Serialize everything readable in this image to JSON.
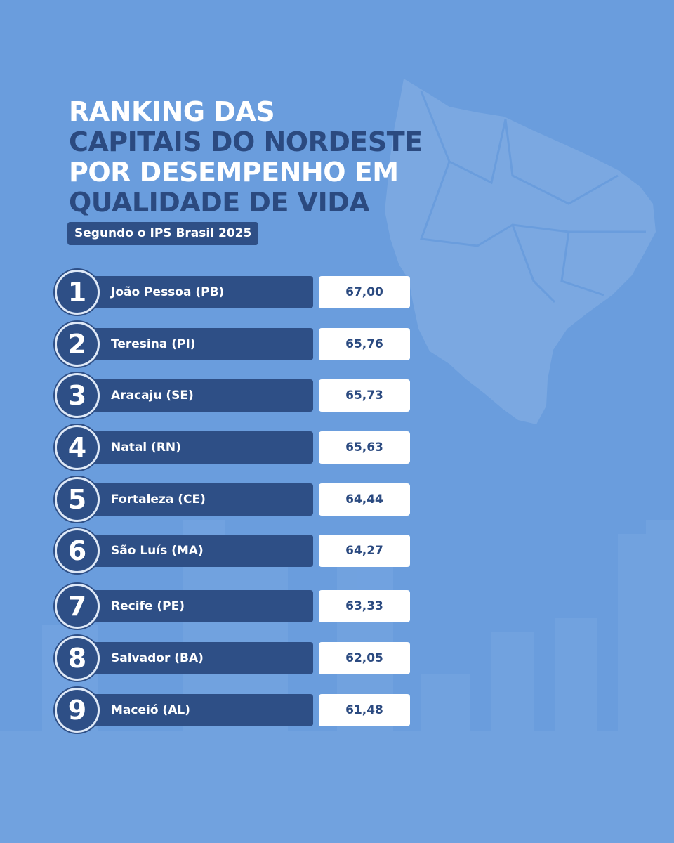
{
  "title": {
    "lines": [
      {
        "text": "RANKING DAS",
        "tone": "light"
      },
      {
        "text": "CAPITAIS DO NORDESTE",
        "tone": "dark"
      },
      {
        "text": "POR DESEMPENHO EM",
        "tone": "light"
      },
      {
        "text": "QUALIDADE DE VIDA",
        "tone": "dark"
      }
    ]
  },
  "subtitle": "Segundo o IPS Brasil 2025",
  "colors": {
    "background": "#6a9ddd",
    "bar": "#2e4f86",
    "dark_text": "#2b4a80",
    "light_text": "#ffffff",
    "value_box": "#ffffff"
  },
  "chart_data": {
    "type": "bar",
    "categories": [
      "João Pessoa (PB)",
      "Teresina (PI)",
      "Aracaju (SE)",
      "Natal (RN)",
      "Fortaleza (CE)",
      "São Luís (MA)",
      "Recife (PE)",
      "Salvador (BA)",
      "Maceió (AL)"
    ],
    "ranks": [
      "1",
      "2",
      "3",
      "4",
      "5",
      "6",
      "7",
      "8",
      "9"
    ],
    "values": [
      67.0,
      65.76,
      65.73,
      65.63,
      64.44,
      64.27,
      63.33,
      62.05,
      61.48
    ],
    "value_labels": [
      "67,00",
      "65,76",
      "65,73",
      "65,63",
      "64,44",
      "64,27",
      "63,33",
      "62,05",
      "61,48"
    ],
    "title": "RANKING DAS CAPITAIS DO NORDESTE POR DESEMPENHO EM QUALIDADE DE VIDA",
    "subtitle": "Segundo o IPS Brasil 2025",
    "xlabel": "",
    "ylabel": ""
  }
}
